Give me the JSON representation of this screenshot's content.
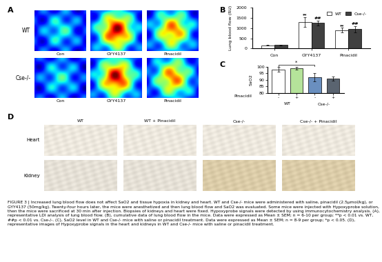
{
  "panel_labels": [
    "A",
    "B",
    "C",
    "D"
  ],
  "panel_a": {
    "row_labels": [
      "WT",
      "Cse-/-"
    ],
    "col_labels": [
      "Con",
      "GYY4137",
      "Pinacidil"
    ]
  },
  "chart_data": [
    {
      "type": "bar",
      "y_label": "Lung blood flow (RU)",
      "categories": [
        "Con",
        "GYY4137",
        "Pinacidil"
      ],
      "series": [
        {
          "name": "WT",
          "color": "#ffffff",
          "values": [
            150,
            1300,
            900
          ],
          "errors": [
            20,
            250,
            120
          ]
        },
        {
          "name": "Cse-/-",
          "color": "#404040",
          "values": [
            170,
            1250,
            950
          ],
          "errors": [
            20,
            130,
            150
          ]
        }
      ],
      "annotations": [
        {
          "text": "**",
          "category": "GYY4137",
          "series": "WT"
        },
        {
          "text": "##",
          "category": "GYY4137",
          "series": "Cse-/-"
        },
        {
          "text": "**",
          "category": "Pinacidil",
          "series": "WT"
        },
        {
          "text": "##",
          "category": "Pinacidil",
          "series": "Cse-/-"
        }
      ],
      "ylim": [
        0,
        2000
      ],
      "yticks": [
        0,
        500,
        1000,
        1500,
        2000
      ],
      "legend": "upper right"
    },
    {
      "type": "bar",
      "y_label": "SaO2",
      "x_label": "Pinacidil",
      "categories": [
        "-",
        "+",
        "-",
        "+"
      ],
      "groups": [
        "WT",
        "Cse-/-"
      ],
      "values": [
        98,
        99,
        92,
        91
      ],
      "errors": [
        2,
        1,
        3,
        1.5
      ],
      "colors": [
        "#ffffff",
        "#b5e39a",
        "#6a8fbf",
        "#5a6470"
      ],
      "significance": {
        "text": "*",
        "from": 0,
        "to": 2
      },
      "ylim": [
        80,
        100
      ],
      "yticks": [
        80,
        85,
        90,
        95,
        100
      ]
    }
  ],
  "panel_d": {
    "row_labels": [
      "Heart",
      "Kidney"
    ],
    "col_labels": [
      "WT",
      "WT + Pinacidil",
      "Cse-/-",
      "Cse-/- + Pinacidil"
    ]
  },
  "caption": "FIGURE 3 | Increased lung blood flow does not affect SaO2 and tissue hypoxia in kidney and heart. WT and Cse-/- mice were administered with saline, pinacidil (2.5μmol/kg), or GYY4137 (50mg/kg). Twenty-four hours later, the mice were anesthetized and then lung blood flow and SaO2 was evaluated. Some mice were injected with Hypoxyprobe solution, then the mice were sacrificed at 30 min after injection. Biopsies of kidneys and heart were fixed. Hypoxyprobe signals were detected by using immunocytochemistry analysis. (A), representative LDI analysis of lung blood flow. (B), cumulative data of lung blood flow in the mice. Data were expressed as Mean ± SEM; n = 6-10 per group; **p < 0.01 vs. WT, ##p < 0.01 vs. Cse-/-. (C), SaO2 level in WT and Cse-/- mice with saline or pinacidil treatment. Data were expressed as Mean ± SEM; n = 8-9 per group; *p < 0.05. (D), representative images of Hypoxyprobe signals in the heart and kidneys in WT and Cse-/- mice with saline or pinacidil treatment."
}
